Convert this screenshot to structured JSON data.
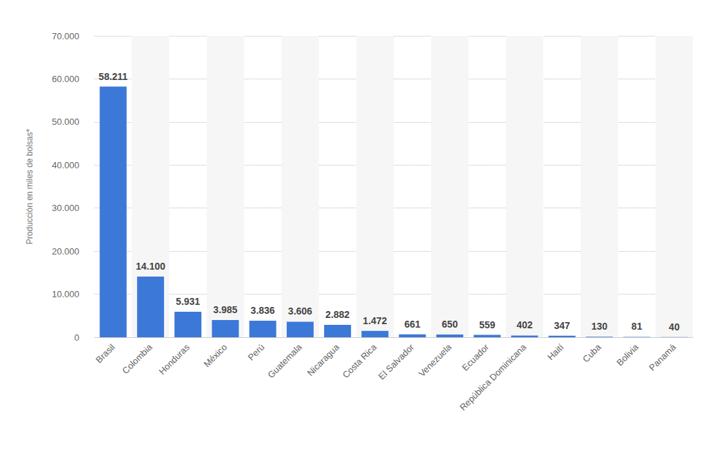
{
  "chart_data": {
    "type": "bar",
    "y_label": "Producción en miles de bolsas*",
    "categories": [
      "Brasil",
      "Colombia",
      "Honduras",
      "México",
      "Perú",
      "Guatemala",
      "Nicaragua",
      "Costa Rica",
      "El Salvador",
      "Venezuela",
      "Ecuador",
      "República Dominicana",
      "Haití",
      "Cuba",
      "Bolivia",
      "Panamá"
    ],
    "values": [
      58211,
      14100,
      5931,
      3985,
      3836,
      3606,
      2882,
      1472,
      661,
      650,
      559,
      402,
      347,
      130,
      81,
      40
    ],
    "value_labels": [
      "58.211",
      "14.100",
      "5.931",
      "3.985",
      "3.836",
      "3.606",
      "2.882",
      "1.472",
      "661",
      "650",
      "559",
      "402",
      "347",
      "130",
      "81",
      "40"
    ],
    "color": "#3c78d8",
    "ylim": [
      0,
      70000
    ],
    "yticks": [
      0,
      {
        "value": 10000,
        "label": "10.000"
      },
      {
        "value": 20000,
        "label": "20.000"
      },
      {
        "value": 30000,
        "label": "30.000"
      },
      {
        "value": 40000,
        "label": "40.000"
      },
      {
        "value": 50000,
        "label": "50.000"
      },
      {
        "value": 60000,
        "label": "60.000"
      },
      {
        "value": 70000,
        "label": "70.000"
      }
    ],
    "grid": true,
    "data_labels": true
  }
}
